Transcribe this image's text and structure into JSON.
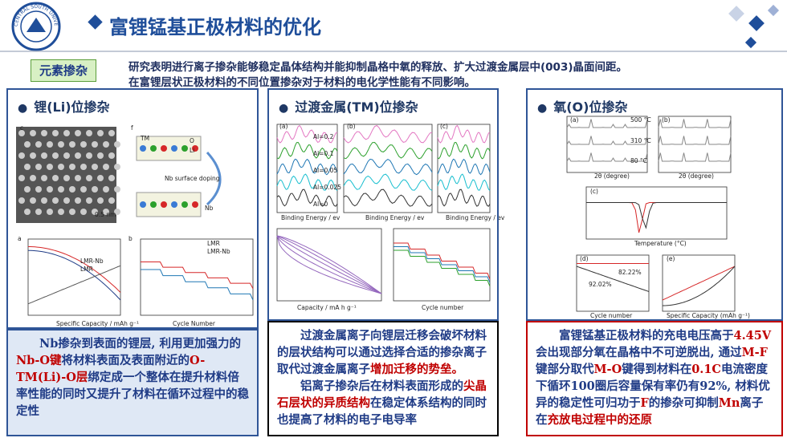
{
  "header": {
    "logo_text": "CENTRAL SOUTH UNIVERSITY",
    "title": "富锂锰基正极材料的优化"
  },
  "tag": "元素掺杂",
  "intro": [
    "研究表明进行离子掺杂能够稳定晶体结构并能抑制晶格中氧的释放、扩大过渡金属层中(003)晶面间距。",
    "在富锂层状正极材料的不同位置掺杂对于材料的电化学性能有不同影响。"
  ],
  "panels": [
    {
      "title": "锂(Li)位掺杂",
      "text_color": "#1f3b86",
      "figure_labels": [
        "c",
        "f",
        "TM",
        "O",
        "Li",
        "Nb surface doping",
        "Nb",
        "0.5 nm",
        "a",
        "b",
        "LMR-Nb",
        "LMR",
        "LMR",
        "LMR-Nb",
        "Specific Capacity / mAh g⁻¹",
        "Cycle Number"
      ],
      "paragraphs": [
        [
          {
            "text": "Nb掺杂到表面的锂层, 利用更加强力的",
            "color": "#1f3b86"
          },
          {
            "text": "Nb-O键",
            "color": "#c00000"
          },
          {
            "text": "将材料表面及表面附近的",
            "color": "#1f3b86"
          },
          {
            "text": "O-TM(Li)-O层",
            "color": "#c00000"
          },
          {
            "text": "绑定成一个整体在提升材料倍率性能的同时又提升了材料在循环过程中的稳定性",
            "color": "#1f3b86"
          }
        ]
      ]
    },
    {
      "title": "过渡金属(TM)位掺杂",
      "text_color": "#1f3b86",
      "figure_labels": [
        "(a)",
        "(b)",
        "(c)",
        "Al=0.2",
        "Al=0.1",
        "Al=0.05",
        "Al=0.025",
        "Al=0",
        "Binding Energy / ev",
        "Binding Energy / ev",
        "Binding Energy / ev",
        "Capacity / mA h g⁻¹",
        "Cycle number"
      ],
      "paragraphs": [
        [
          {
            "text": "过渡金属离子向锂层迁移会破坏材料的层状结构可以通过选择合适的掺杂离子取代过渡金属离子",
            "color": "#1f3b86"
          },
          {
            "text": "增加迁移的势垒。",
            "color": "#c00000"
          }
        ],
        [
          {
            "text": "铝离子掺杂后在材料表面形成的",
            "color": "#1f3b86"
          },
          {
            "text": "尖晶石层状的异质结构",
            "color": "#c00000"
          },
          {
            "text": "在稳定体系结构的同时也提高了材料的电子电导率",
            "color": "#1f3b86"
          }
        ]
      ]
    },
    {
      "title": "氧(O)位掺杂",
      "text_color": "#1f3b86",
      "figure_labels": [
        "(a)",
        "(b)",
        "500 °C",
        "310 °C",
        "80 °C",
        "2θ (degree)",
        "2θ (degree)",
        "(c)",
        "Temperature (°C)",
        "(d)",
        "(e)",
        "92.02%",
        "82.22%",
        "Cycle number",
        "Specific Capacity (mAh g⁻¹)"
      ],
      "paragraphs": [
        [
          {
            "text": "富锂锰基正极材料的充电电压高于",
            "color": "#1f3b86"
          },
          {
            "text": "4.45V",
            "color": "#c00000"
          },
          {
            "text": " 会出现部分氧在晶格中不可逆脱出, 通过",
            "color": "#1f3b86"
          },
          {
            "text": "M-F",
            "color": "#c00000"
          },
          {
            "text": "键部分取代",
            "color": "#1f3b86"
          },
          {
            "text": "M-O",
            "color": "#c00000"
          },
          {
            "text": "键得到材料在",
            "color": "#1f3b86"
          },
          {
            "text": "0.1C",
            "color": "#c00000"
          },
          {
            "text": "电流密度下循环100圈后容量保有率仍有92%, 材料优异的稳定性可归功于",
            "color": "#1f3b86"
          },
          {
            "text": "F",
            "color": "#c00000"
          },
          {
            "text": "的掺杂可抑制",
            "color": "#1f3b86"
          },
          {
            "text": "Mn",
            "color": "#c00000"
          },
          {
            "text": "离子在",
            "color": "#1f3b86"
          },
          {
            "text": "充放电过程中的还原",
            "color": "#c00000"
          }
        ]
      ]
    }
  ]
}
